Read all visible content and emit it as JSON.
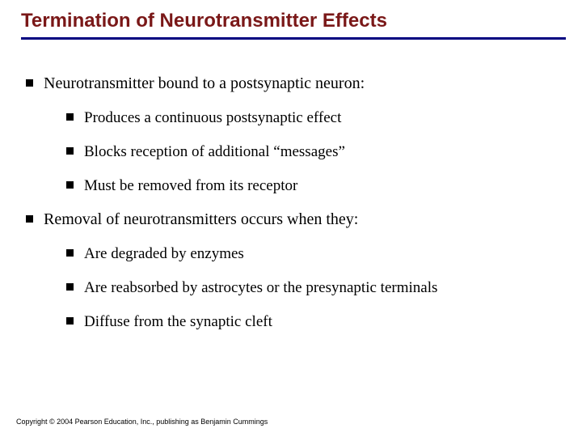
{
  "title": "Termination of Neurotransmitter Effects",
  "bullets": [
    {
      "text": "Neurotransmitter bound to a postsynaptic neuron:",
      "children": [
        "Produces a continuous postsynaptic effect",
        "Blocks reception of additional “messages”",
        "Must be removed from its receptor"
      ]
    },
    {
      "text": "Removal of neurotransmitters occurs when they:",
      "children": [
        "Are degraded by enzymes",
        "Are reabsorbed by astrocytes or the presynaptic terminals",
        "Diffuse from the synaptic cleft"
      ]
    }
  ],
  "copyright": "Copyright © 2004 Pearson Education, Inc., publishing as Benjamin Cummings",
  "style": {
    "title_color": "#7a1818",
    "underline_color": "#000080",
    "bullet_color": "#000000",
    "background_color": "#ffffff",
    "title_font": "Arial",
    "body_font": "Times New Roman",
    "title_fontsize": 24,
    "body_fontsize": 20,
    "sub_fontsize": 19,
    "copyright_fontsize": 9
  }
}
